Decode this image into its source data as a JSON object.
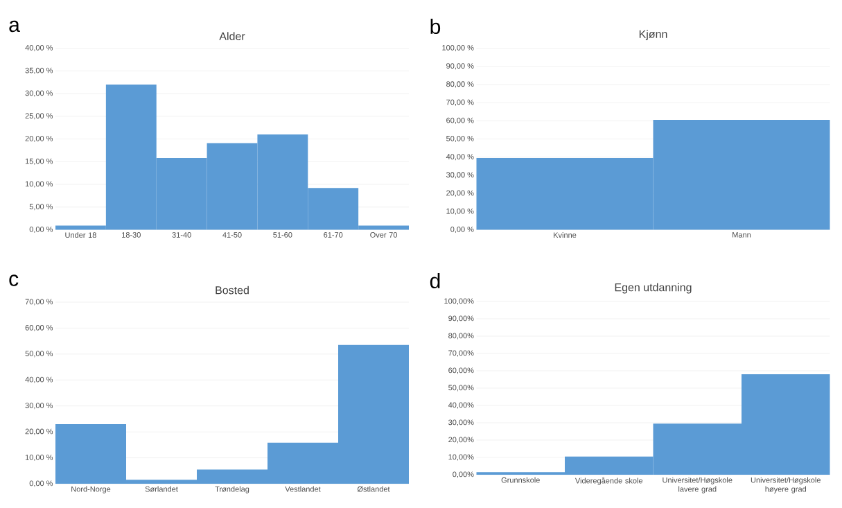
{
  "chart_data": [
    {
      "type": "bar",
      "title": "Alder",
      "annotations": [
        "a"
      ],
      "categories": [
        "Under 18",
        "18-30",
        "31-40",
        "41-50",
        "51-60",
        "61-70",
        "Over 70"
      ],
      "values": [
        0.9,
        32,
        15.8,
        19.1,
        21,
        9.2,
        0.9
      ],
      "color": "#5b9bd5",
      "ylim": [
        0,
        40
      ],
      "yticks": [
        {
          "value": 0,
          "label": "0,00 %"
        },
        {
          "value": 5,
          "label": "5,00 %"
        },
        {
          "value": 10,
          "label": "10,00 %"
        },
        {
          "value": 15,
          "label": "15,00 %"
        },
        {
          "value": 20,
          "label": "20,00 %"
        },
        {
          "value": 25,
          "label": "25,00 %"
        },
        {
          "value": 30,
          "label": "30,00 %"
        },
        {
          "value": 35,
          "label": "35,00 %"
        },
        {
          "value": 40,
          "label": "40,00 %"
        }
      ],
      "grid": "y"
    },
    {
      "type": "bar",
      "title": "Kjønn",
      "annotations": [
        "b"
      ],
      "categories": [
        "Kvinne",
        "Mann"
      ],
      "values": [
        39.5,
        60.5
      ],
      "color": "#5b9bd5",
      "ylim": [
        0,
        100
      ],
      "yticks": [
        {
          "value": 0,
          "label": "0,00 %"
        },
        {
          "value": 10,
          "label": "10,00 %"
        },
        {
          "value": 20,
          "label": "20,00 %"
        },
        {
          "value": 30,
          "label": "30,00 %"
        },
        {
          "value": 40,
          "label": "40,00 %"
        },
        {
          "value": 50,
          "label": "50,00 %"
        },
        {
          "value": 60,
          "label": "60,00 %"
        },
        {
          "value": 70,
          "label": "70,00 %"
        },
        {
          "value": 80,
          "label": "80,00 %"
        },
        {
          "value": 90,
          "label": "90,00 %"
        },
        {
          "value": 100,
          "label": "100,00 %"
        }
      ],
      "grid": "y"
    },
    {
      "type": "bar",
      "title": "Bosted",
      "annotations": [
        "c"
      ],
      "categories": [
        "Nord-Norge",
        "Sørlandet",
        "Trøndelag",
        "Vestlandet",
        "Østlandet"
      ],
      "values": [
        23,
        1.5,
        5.5,
        15.8,
        53.5
      ],
      "color": "#5b9bd5",
      "ylim": [
        0,
        70
      ],
      "yticks": [
        {
          "value": 0,
          "label": "0,00 %"
        },
        {
          "value": 10,
          "label": "10,00 %"
        },
        {
          "value": 20,
          "label": "20,00 %"
        },
        {
          "value": 30,
          "label": "30,00 %"
        },
        {
          "value": 40,
          "label": "40,00 %"
        },
        {
          "value": 50,
          "label": "50,00 %"
        },
        {
          "value": 60,
          "label": "60,00 %"
        },
        {
          "value": 70,
          "label": "70,00 %"
        }
      ],
      "grid": "y"
    },
    {
      "type": "bar",
      "title": "Egen utdanning",
      "annotations": [
        "d"
      ],
      "categories": [
        "Grunnskole",
        "Videregående skole",
        "Universitet/Høgskole lavere grad",
        "Universitet/Høgskole høyere grad"
      ],
      "values": [
        1.5,
        10.5,
        29.5,
        58
      ],
      "color": "#5b9bd5",
      "ylim": [
        0,
        100
      ],
      "yticks": [
        {
          "value": 0,
          "label": "0,00%"
        },
        {
          "value": 10,
          "label": "10,00%"
        },
        {
          "value": 20,
          "label": "20,00%"
        },
        {
          "value": 30,
          "label": "30,00%"
        },
        {
          "value": 40,
          "label": "40,00%"
        },
        {
          "value": 50,
          "label": "50,00%"
        },
        {
          "value": 60,
          "label": "60,00%"
        },
        {
          "value": 70,
          "label": "70,00%"
        },
        {
          "value": 80,
          "label": "80,00%"
        },
        {
          "value": 90,
          "label": "90,00%"
        },
        {
          "value": 100,
          "label": "100,00%"
        }
      ],
      "grid": "y"
    }
  ]
}
